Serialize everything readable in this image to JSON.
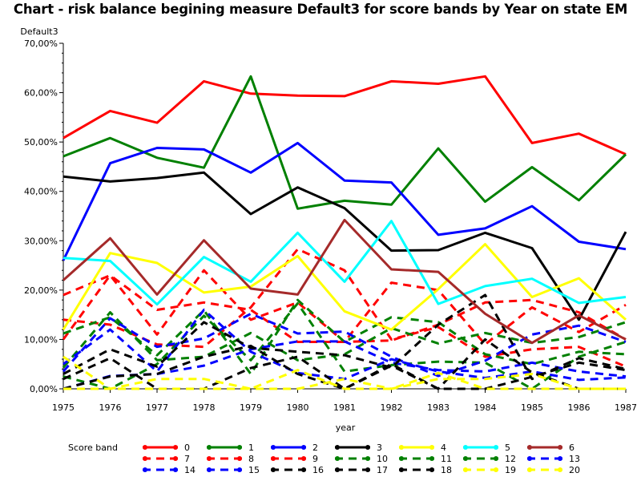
{
  "chart_data": {
    "type": "line",
    "title": "Chart - risk balance begining measure Default3 for score bands by Year on state EM",
    "xlabel": "year",
    "ylabel": "Default3",
    "x": [
      1975,
      1976,
      1977,
      1978,
      1979,
      1980,
      1981,
      1982,
      1983,
      1984,
      1985,
      1986,
      1987
    ],
    "xlim": [
      1975,
      1987
    ],
    "ylim": [
      0,
      70
    ],
    "yticks": [
      0,
      10,
      20,
      30,
      40,
      50,
      60,
      70
    ],
    "ytick_labels": [
      "0,00%",
      "10,00%",
      "20,00%",
      "30,00%",
      "40,00%",
      "50,00%",
      "60,00%",
      "70,00%"
    ],
    "grid": false,
    "legend_title": "Score band",
    "legend_position": "bottom",
    "series": [
      {
        "name": "0",
        "color": "#ff0000",
        "style": "solid",
        "values": [
          50.8,
          56.3,
          53.9,
          62.3,
          59.8,
          59.4,
          59.3,
          62.3,
          61.8,
          63.3,
          49.8,
          51.7,
          47.5
        ]
      },
      {
        "name": "1",
        "color": "#008000",
        "style": "solid",
        "values": [
          47.1,
          50.8,
          46.8,
          44.8,
          63.3,
          36.5,
          38.1,
          37.3,
          48.7,
          37.9,
          44.9,
          38.2,
          47.5
        ]
      },
      {
        "name": "2",
        "color": "#0000ff",
        "style": "solid",
        "values": [
          26.0,
          45.7,
          48.8,
          48.5,
          43.8,
          49.8,
          42.2,
          41.8,
          31.2,
          32.5,
          37.0,
          29.8,
          28.3
        ]
      },
      {
        "name": "3",
        "color": "#000000",
        "style": "solid",
        "values": [
          43.0,
          42.0,
          42.7,
          43.8,
          35.4,
          40.8,
          36.6,
          28.0,
          28.1,
          31.6,
          28.5,
          14.0,
          31.8
        ]
      },
      {
        "name": "4",
        "color": "#ffff00",
        "style": "solid",
        "values": [
          12.0,
          27.5,
          25.5,
          19.5,
          20.7,
          26.9,
          15.7,
          12.0,
          20.2,
          29.3,
          18.6,
          22.4,
          14.0
        ]
      },
      {
        "name": "5",
        "color": "#00ffff",
        "style": "solid",
        "values": [
          26.5,
          25.9,
          17.1,
          26.7,
          21.7,
          31.6,
          21.7,
          34.0,
          17.2,
          20.8,
          22.3,
          17.4,
          18.6
        ]
      },
      {
        "name": "6",
        "color": "#a52a2a",
        "style": "solid",
        "values": [
          22.0,
          30.5,
          19.1,
          30.1,
          20.3,
          19.1,
          34.2,
          24.2,
          23.7,
          15.2,
          9.3,
          14.9,
          10.0
        ]
      },
      {
        "name": "7",
        "color": "#ff0000",
        "style": "dashed",
        "values": [
          19.0,
          23.0,
          16.0,
          17.5,
          16.0,
          9.5,
          9.5,
          21.5,
          20.0,
          9.0,
          16.5,
          11.5,
          17.0
        ]
      },
      {
        "name": "8",
        "color": "#ff0000",
        "style": "dashed",
        "values": [
          10.0,
          23.0,
          11.0,
          24.0,
          14.0,
          17.5,
          9.5,
          9.8,
          13.0,
          17.5,
          18.0,
          15.5,
          10.0
        ]
      },
      {
        "name": "9",
        "color": "#ff0000",
        "style": "dashed",
        "values": [
          14.0,
          13.0,
          9.0,
          8.5,
          16.5,
          28.3,
          24.0,
          10.0,
          12.5,
          6.5,
          8.0,
          8.5,
          4.5
        ]
      },
      {
        "name": "10",
        "color": "#008000",
        "style": "dashed",
        "values": [
          11.2,
          14.5,
          6.8,
          15.9,
          3.0,
          18.0,
          9.5,
          14.5,
          13.5,
          7.0,
          5.0,
          7.5,
          7.0
        ]
      },
      {
        "name": "11",
        "color": "#008000",
        "style": "dashed",
        "values": [
          4.3,
          15.5,
          5.8,
          6.5,
          11.3,
          5.8,
          7.0,
          12.3,
          9.2,
          11.3,
          9.3,
          10.5,
          13.5
        ]
      },
      {
        "name": "12",
        "color": "#008000",
        "style": "dashed",
        "values": [
          2.5,
          0.0,
          5.0,
          14.8,
          5.8,
          17.3,
          3.5,
          4.8,
          5.5,
          5.3,
          0.0,
          6.5,
          9.5
        ]
      },
      {
        "name": "13",
        "color": "#0000ff",
        "style": "dashed",
        "values": [
          3.5,
          14.3,
          8.5,
          10.2,
          15.2,
          11.2,
          11.6,
          6.5,
          2.6,
          5.7,
          11.0,
          12.8,
          9.5
        ]
      },
      {
        "name": "14",
        "color": "#0000ff",
        "style": "dashed",
        "values": [
          5.0,
          12.0,
          3.5,
          16.0,
          7.5,
          3.2,
          2.0,
          6.0,
          3.5,
          2.2,
          3.5,
          1.8,
          2.3
        ]
      },
      {
        "name": "15",
        "color": "#0000ff",
        "style": "dashed",
        "values": [
          0.0,
          2.6,
          3.0,
          4.7,
          8.0,
          9.6,
          9.6,
          5.3,
          3.8,
          3.5,
          5.3,
          3.5,
          2.5
        ]
      },
      {
        "name": "16",
        "color": "#000000",
        "style": "dashed",
        "values": [
          3.0,
          8.0,
          4.5,
          13.5,
          8.3,
          7.5,
          6.8,
          4.3,
          13.0,
          19.0,
          2.0,
          6.2,
          4.0
        ]
      },
      {
        "name": "17",
        "color": "#000000",
        "style": "dashed",
        "values": [
          2.0,
          6.2,
          0.0,
          0.0,
          4.2,
          6.5,
          0.0,
          4.7,
          0.0,
          10.0,
          3.3,
          0.0,
          0.0
        ]
      },
      {
        "name": "18",
        "color": "#000000",
        "style": "dashed",
        "values": [
          0.0,
          2.5,
          3.0,
          6.5,
          8.7,
          3.0,
          0.0,
          5.0,
          0.0,
          0.0,
          2.4,
          5.3,
          3.8
        ]
      },
      {
        "name": "19",
        "color": "#ffff00",
        "style": "dashed",
        "values": [
          6.5,
          0.0,
          2.0,
          2.0,
          0.0,
          0.0,
          2.0,
          0.0,
          2.0,
          2.0,
          3.0,
          0.0,
          0.0
        ]
      },
      {
        "name": "20",
        "color": "#ffff00",
        "style": "dashed",
        "values": [
          0.0,
          0.0,
          0.0,
          0.0,
          0.0,
          3.8,
          0.0,
          0.0,
          3.2,
          0.0,
          0.0,
          0.0,
          0.0
        ]
      }
    ]
  }
}
